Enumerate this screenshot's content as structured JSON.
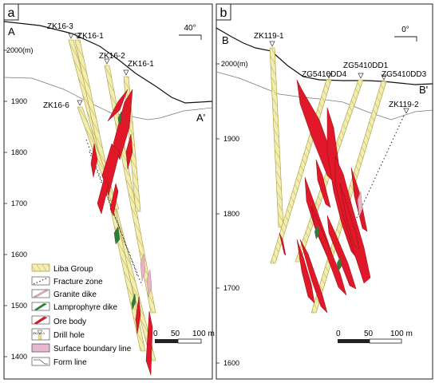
{
  "panels": {
    "a": {
      "panel_label": "a",
      "section_start": "A",
      "section_end": "A'",
      "orientation": "40°",
      "elevation_labels": [
        "2000(m)",
        "1900",
        "1800",
        "1700",
        "1600",
        "1500",
        "1400"
      ],
      "hole_labels": [
        "ZK16-3",
        "ZK16-1",
        "ZK16-2",
        "ZK16-1",
        "ZK16-6"
      ],
      "scale": {
        "zero": "0",
        "mid": "50",
        "end": "100 m"
      }
    },
    "b": {
      "panel_label": "b",
      "section_start": "B",
      "section_end": "B'",
      "orientation": "0°",
      "elevation_labels": [
        "2000(m)",
        "1900",
        "1800",
        "1700",
        "1600"
      ],
      "hole_labels": [
        "ZK119-1",
        "ZG5410DD1",
        "ZG5410DD4",
        "ZG5410DD3",
        "ZK119-2"
      ],
      "scale": {
        "zero": "0",
        "mid": "50",
        "end": "100 m"
      }
    }
  },
  "legend": [
    {
      "label": "Liba Group",
      "symbol": "liba"
    },
    {
      "label": "Fracture zone",
      "symbol": "fracture"
    },
    {
      "label": "Granite dike",
      "symbol": "granite"
    },
    {
      "label": "Lamprophyre dike",
      "symbol": "lamprophyre"
    },
    {
      "label": "Ore body",
      "symbol": "ore"
    },
    {
      "label": "Drill hole",
      "symbol": "drill",
      "sample_text": "ZK119-1"
    },
    {
      "label": "Surface boundary line",
      "symbol": "surface"
    },
    {
      "label": "Form line",
      "symbol": "form"
    }
  ],
  "colors": {
    "ore": "#e0182a",
    "ore_dark": "#8a1010",
    "liba_fill": "#f2edb0",
    "liba_edge": "#a99a3a",
    "lamprophyre": "#2f7d3a",
    "granite": "#e7b4c6",
    "frame": "#222222"
  }
}
